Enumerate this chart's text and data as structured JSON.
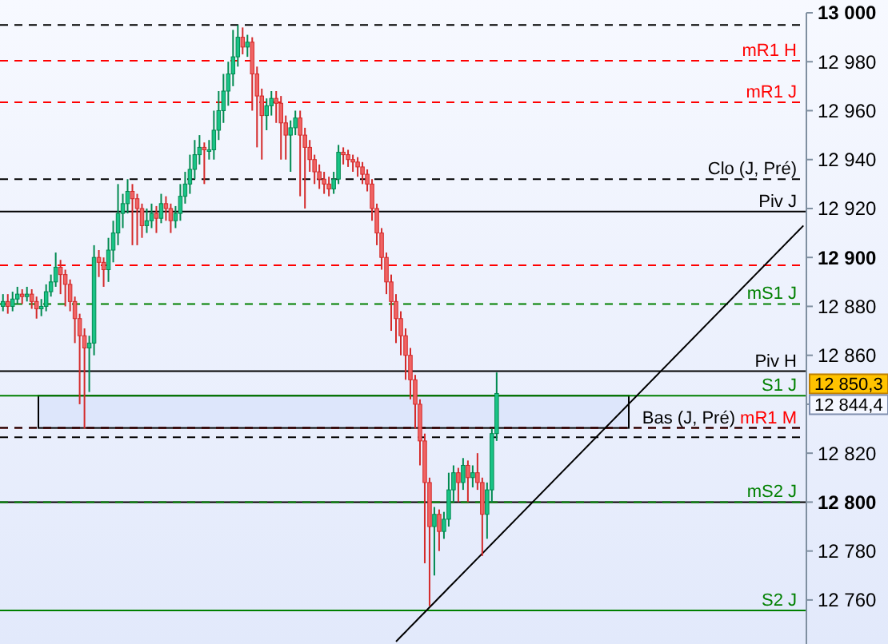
{
  "chart_data": {
    "type": "candlestick",
    "categories": [
      null,
      null,
      null,
      null,
      null,
      null,
      null,
      null,
      null,
      null,
      null,
      null,
      null,
      null,
      null,
      null,
      null,
      null,
      null,
      null,
      null,
      null,
      null,
      null,
      null,
      null,
      null,
      null,
      null,
      null,
      null,
      null,
      null,
      null,
      null,
      null,
      null,
      null,
      null,
      null,
      null,
      null,
      null,
      null,
      null,
      null,
      null,
      null,
      null,
      null,
      null,
      null,
      null,
      null,
      null,
      null,
      null,
      null,
      null,
      null,
      null,
      null,
      null,
      null,
      null,
      null,
      null,
      null,
      null,
      null,
      null,
      null,
      null,
      null,
      null,
      null,
      null,
      null,
      null,
      null,
      null,
      null,
      null,
      null,
      null,
      null,
      null,
      null,
      null,
      null,
      null,
      null,
      null,
      null,
      null,
      null,
      null,
      null,
      null,
      null,
      null,
      null,
      null,
      null,
      null,
      null,
      null,
      null,
      null,
      null,
      null,
      null,
      null,
      null,
      null,
      null,
      null,
      null,
      null,
      null,
      null,
      null,
      null,
      null,
      null,
      null,
      null,
      null,
      null,
      null,
      null,
      null,
      null,
      null,
      null,
      null,
      null,
      null,
      null,
      null,
      null,
      null,
      null,
      null,
      null,
      null,
      null,
      null,
      null,
      null,
      null,
      null,
      null,
      null,
      null,
      null,
      null,
      null,
      null,
      null,
      null,
      null,
      null,
      null,
      null,
      null,
      null,
      null
    ],
    "ohlc": [
      [
        12880,
        12885,
        12878,
        12882
      ],
      [
        12882,
        12885,
        12877,
        12880
      ],
      [
        12880,
        12886,
        12878,
        12883
      ],
      [
        12883,
        12888,
        12881,
        12885
      ],
      [
        12885,
        12887,
        12881,
        12884
      ],
      [
        12884,
        12888,
        12882,
        12885
      ],
      [
        12885,
        12887,
        12879,
        12882
      ],
      [
        12882,
        12884,
        12875,
        12879
      ],
      [
        12879,
        12883,
        12876,
        12880
      ],
      [
        12880,
        12889,
        12878,
        12886
      ],
      [
        12886,
        12893,
        12884,
        12890
      ],
      [
        12890,
        12902,
        12888,
        12896
      ],
      [
        12896,
        12899,
        12885,
        12893
      ],
      [
        12893,
        12895,
        12880,
        12889
      ],
      [
        12889,
        12891,
        12878,
        12882
      ],
      [
        12882,
        12884,
        12865,
        12875
      ],
      [
        12875,
        12877,
        12840,
        12868
      ],
      [
        12868,
        12871,
        12830,
        12863
      ],
      [
        12863,
        12868,
        12845,
        12865
      ],
      [
        12865,
        12905,
        12860,
        12900
      ],
      [
        12900,
        12903,
        12892,
        12898
      ],
      [
        12898,
        12900,
        12888,
        12895
      ],
      [
        12895,
        12908,
        12890,
        12903
      ],
      [
        12903,
        12915,
        12898,
        12910
      ],
      [
        12910,
        12930,
        12905,
        12918
      ],
      [
        12918,
        12926,
        12912,
        12922
      ],
      [
        12922,
        12932,
        12918,
        12927
      ],
      [
        12927,
        12930,
        12905,
        12924
      ],
      [
        12924,
        12926,
        12905,
        12920
      ],
      [
        12920,
        12922,
        12908,
        12913
      ],
      [
        12913,
        12920,
        12910,
        12915
      ],
      [
        12915,
        12922,
        12912,
        12918
      ],
      [
        12918,
        12921,
        12910,
        12916
      ],
      [
        12916,
        12926,
        12914,
        12922
      ],
      [
        12922,
        12925,
        12915,
        12920
      ],
      [
        12920,
        12922,
        12910,
        12915
      ],
      [
        12915,
        12921,
        12912,
        12918
      ],
      [
        12918,
        12930,
        12915,
        12925
      ],
      [
        12925,
        12935,
        12922,
        12930
      ],
      [
        12930,
        12942,
        12926,
        12936
      ],
      [
        12936,
        12948,
        12932,
        12942
      ],
      [
        12942,
        12950,
        12938,
        12945
      ],
      [
        12945,
        12947,
        12930,
        12944
      ],
      [
        12944,
        12948,
        12940,
        12944
      ],
      [
        12944,
        12960,
        12940,
        12952
      ],
      [
        12952,
        12968,
        12948,
        12960
      ],
      [
        12960,
        12975,
        12955,
        12968
      ],
      [
        12968,
        12980,
        12962,
        12975
      ],
      [
        12975,
        12993,
        12970,
        12982
      ],
      [
        12982,
        12995,
        12978,
        12990
      ],
      [
        12990,
        12994,
        12983,
        12986
      ],
      [
        12986,
        12991,
        12982,
        12988
      ],
      [
        12988,
        12990,
        12960,
        12975
      ],
      [
        12975,
        12978,
        12945,
        12966
      ],
      [
        12966,
        12969,
        12940,
        12958
      ],
      [
        12958,
        12965,
        12952,
        12962
      ],
      [
        12962,
        12968,
        12958,
        12965
      ],
      [
        12965,
        12968,
        12955,
        12963
      ],
      [
        12963,
        12966,
        12940,
        12955
      ],
      [
        12955,
        12958,
        12940,
        12950
      ],
      [
        12950,
        12956,
        12935,
        12953
      ],
      [
        12953,
        12960,
        12950,
        12957
      ],
      [
        12957,
        12960,
        12925,
        12950
      ],
      [
        12950,
        12953,
        12920,
        12945
      ],
      [
        12945,
        12948,
        12935,
        12940
      ],
      [
        12940,
        12942,
        12930,
        12935
      ],
      [
        12935,
        12938,
        12928,
        12932
      ],
      [
        12932,
        12935,
        12926,
        12930
      ],
      [
        12930,
        12933,
        12925,
        12928
      ],
      [
        12928,
        12935,
        12926,
        12932
      ],
      [
        12932,
        12946,
        12930,
        12943
      ],
      [
        12943,
        12945,
        12938,
        12942
      ],
      [
        12942,
        12944,
        12937,
        12940
      ],
      [
        12940,
        12942,
        12935,
        12939
      ],
      [
        12939,
        12941,
        12933,
        12937
      ],
      [
        12937,
        12939,
        12930,
        12934
      ],
      [
        12934,
        12936,
        12927,
        12930
      ],
      [
        12930,
        12932,
        12915,
        12920
      ],
      [
        12920,
        12922,
        12905,
        12910
      ],
      [
        12910,
        12912,
        12895,
        12900
      ],
      [
        12900,
        12902,
        12885,
        12890
      ],
      [
        12890,
        12893,
        12870,
        12882
      ],
      [
        12882,
        12885,
        12865,
        12875
      ],
      [
        12875,
        12878,
        12860,
        12868
      ],
      [
        12868,
        12871,
        12850,
        12860
      ],
      [
        12860,
        12863,
        12842,
        12850
      ],
      [
        12850,
        12852,
        12830,
        12840
      ],
      [
        12840,
        12842,
        12815,
        12825
      ],
      [
        12825,
        12828,
        12775,
        12808
      ],
      [
        12808,
        12810,
        12757.5,
        12790
      ],
      [
        12790,
        12798,
        12770,
        12795
      ],
      [
        12795,
        12797,
        12780,
        12788
      ],
      [
        12788,
        12796,
        12785,
        12793
      ],
      [
        12793,
        12812,
        12790,
        12805
      ],
      [
        12805,
        12815,
        12800,
        12812
      ],
      [
        12812,
        12814,
        12800,
        12808
      ],
      [
        12808,
        12818,
        12805,
        12815
      ],
      [
        12815,
        12817,
        12800,
        12810
      ],
      [
        12810,
        12815,
        12806,
        12812
      ],
      [
        12812,
        12820,
        12805,
        12808
      ],
      [
        12808,
        12810,
        12778,
        12795
      ],
      [
        12795,
        12808,
        12785,
        12805
      ],
      [
        12805,
        12830,
        12800,
        12828
      ],
      [
        12828,
        12853,
        12825,
        12844.4
      ],
      null,
      null,
      null,
      null,
      null,
      null,
      null,
      null,
      null,
      null,
      null,
      null,
      null,
      null,
      null,
      null,
      null,
      null,
      null,
      null,
      null,
      null,
      null,
      null,
      null,
      null,
      null,
      null,
      null,
      null,
      null,
      null,
      null,
      null,
      null,
      null,
      null,
      null,
      null,
      null,
      null,
      null,
      null,
      null,
      null,
      null,
      null,
      null,
      null,
      null,
      null,
      null,
      null,
      null,
      null,
      null,
      null,
      null,
      null,
      null,
      null,
      null,
      null,
      null
    ],
    "series": [
      {
        "type": "line",
        "color": "#000000",
        "values": [
          null,
          null,
          null,
          null,
          null,
          null,
          null,
          null,
          null,
          null,
          null,
          null,
          null,
          null,
          null,
          null,
          null,
          null,
          null,
          null,
          null,
          null,
          null,
          null,
          null,
          null,
          null,
          null,
          null,
          null,
          null,
          null,
          null,
          null,
          null,
          null,
          null,
          null,
          null,
          null,
          null,
          null,
          null,
          null,
          null,
          null,
          null,
          null,
          null,
          null,
          null,
          null,
          null,
          null,
          null,
          null,
          null,
          null,
          null,
          null,
          null,
          null,
          null,
          null,
          null,
          null,
          null,
          null,
          null,
          null,
          null,
          null,
          null,
          null,
          null,
          null,
          null,
          null,
          null,
          null,
          null,
          null,
          12743,
          12745,
          12747,
          12749,
          12751,
          12753,
          12755,
          12757,
          12759,
          12761,
          12763,
          12765,
          12767,
          12769,
          12771,
          12773,
          12775,
          12777,
          12779,
          12781,
          12783,
          12785,
          12787,
          12789,
          12791,
          12793,
          12795,
          12797,
          12799,
          12801,
          12803,
          12805,
          12807,
          12809,
          12811,
          12813,
          12815,
          12817,
          12819,
          12821,
          12823,
          12825,
          12827,
          12829,
          12831,
          12833,
          12835,
          12837,
          12839,
          12841,
          12843,
          12845,
          12847,
          12849,
          12851,
          12853,
          12855,
          12857,
          12859,
          12861,
          12863,
          12865,
          12867,
          12869,
          12871,
          12873,
          12875,
          12877,
          12879,
          12881,
          12883,
          12885,
          12887,
          12889,
          12891,
          12893,
          12895,
          12897,
          12899,
          12901,
          12903,
          12905,
          12907,
          12909,
          12911,
          12913
        ]
      }
    ],
    "ylim": [
      12742,
      13000
    ],
    "yticks": [
      {
        "value": 12760,
        "label": "12 760"
      },
      {
        "value": 12780,
        "label": "12 780"
      },
      {
        "value": 12800,
        "label": "12 800"
      },
      {
        "value": 12820,
        "label": "12 820"
      },
      {
        "value": 12840,
        "label": null
      },
      {
        "value": 12860,
        "label": "12 860"
      },
      {
        "value": 12880,
        "label": "12 880"
      },
      {
        "value": 12900,
        "label": "12 900"
      },
      {
        "value": 12920,
        "label": "12 920"
      },
      {
        "value": 12940,
        "label": "12 940"
      },
      {
        "value": 12960,
        "label": "12 960"
      },
      {
        "value": 12980,
        "label": "12 980"
      },
      {
        "value": 13000,
        "label": "13 000"
      }
    ],
    "tick_labels": "y",
    "bands": [
      {
        "axis": "y",
        "from": 12830.3,
        "to": 12843.5,
        "color": "#dde6fb"
      }
    ],
    "ref_lines": [
      {
        "axis": "y",
        "value": 12995,
        "color": "#000000",
        "line_style": "dashed"
      },
      {
        "axis": "y",
        "value": 12980.4,
        "label": "mR1 H",
        "color": "#ff0000",
        "line_style": "dashed"
      },
      {
        "axis": "y",
        "value": 12963.4,
        "label": "mR1 J",
        "color": "#ff0000",
        "line_style": "dashed"
      },
      {
        "axis": "y",
        "value": 12932,
        "label": "Clo (J, Pré)",
        "color": "#000000",
        "line_style": "dashed"
      },
      {
        "axis": "y",
        "value": 12918.8,
        "label": "Piv J",
        "color": "#000000",
        "line_style": "solid"
      },
      {
        "axis": "y",
        "value": 12896.8,
        "color": "#ff0000",
        "line_style": "dashed"
      },
      {
        "axis": "y",
        "value": 12881,
        "label": "mS1 J",
        "color": "#008000",
        "line_style": "dashed"
      },
      {
        "axis": "y",
        "value": 12853.5,
        "label": "Piv H",
        "color": "#000000",
        "line_style": "solid"
      },
      {
        "axis": "y",
        "value": 12843.5,
        "label": "S1 J",
        "color": "#008000",
        "line_style": "solid"
      },
      {
        "axis": "y",
        "value": 12830.3,
        "label": "mR1 M",
        "color": "#ff0000",
        "line_style": "dashed"
      },
      {
        "axis": "y",
        "value": 12830.3,
        "label": "Bas (J, Pré)",
        "color": "#000000",
        "line_style": "dashed"
      },
      {
        "axis": "y",
        "value": 12826.5,
        "color": "#000000",
        "line_style": "dashed"
      },
      {
        "axis": "y",
        "value": 12800,
        "color": "#000000",
        "line_style": "solid"
      },
      {
        "axis": "y",
        "value": 12800,
        "label": "mS2 J",
        "color": "#008000",
        "line_style": "dashed"
      },
      {
        "axis": "y",
        "value": 12755.7,
        "label": "S2 J",
        "color": "#008000",
        "line_style": "solid"
      }
    ],
    "annotations": [
      "12 850,3",
      "12 844,4"
    ]
  }
}
